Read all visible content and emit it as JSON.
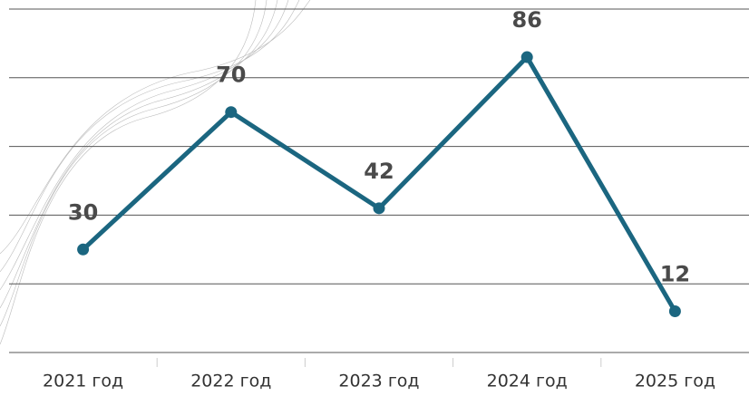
{
  "chart_data": {
    "type": "line",
    "categories": [
      "2021 год",
      "2022 год",
      "2023 год",
      "2024 год",
      "2025 год"
    ],
    "values": [
      30,
      70,
      42,
      86,
      12
    ],
    "color": "#1b6680",
    "ylim": [
      0,
      100
    ],
    "yticks": [
      0,
      20,
      40,
      60,
      80,
      100
    ],
    "grid": true
  }
}
